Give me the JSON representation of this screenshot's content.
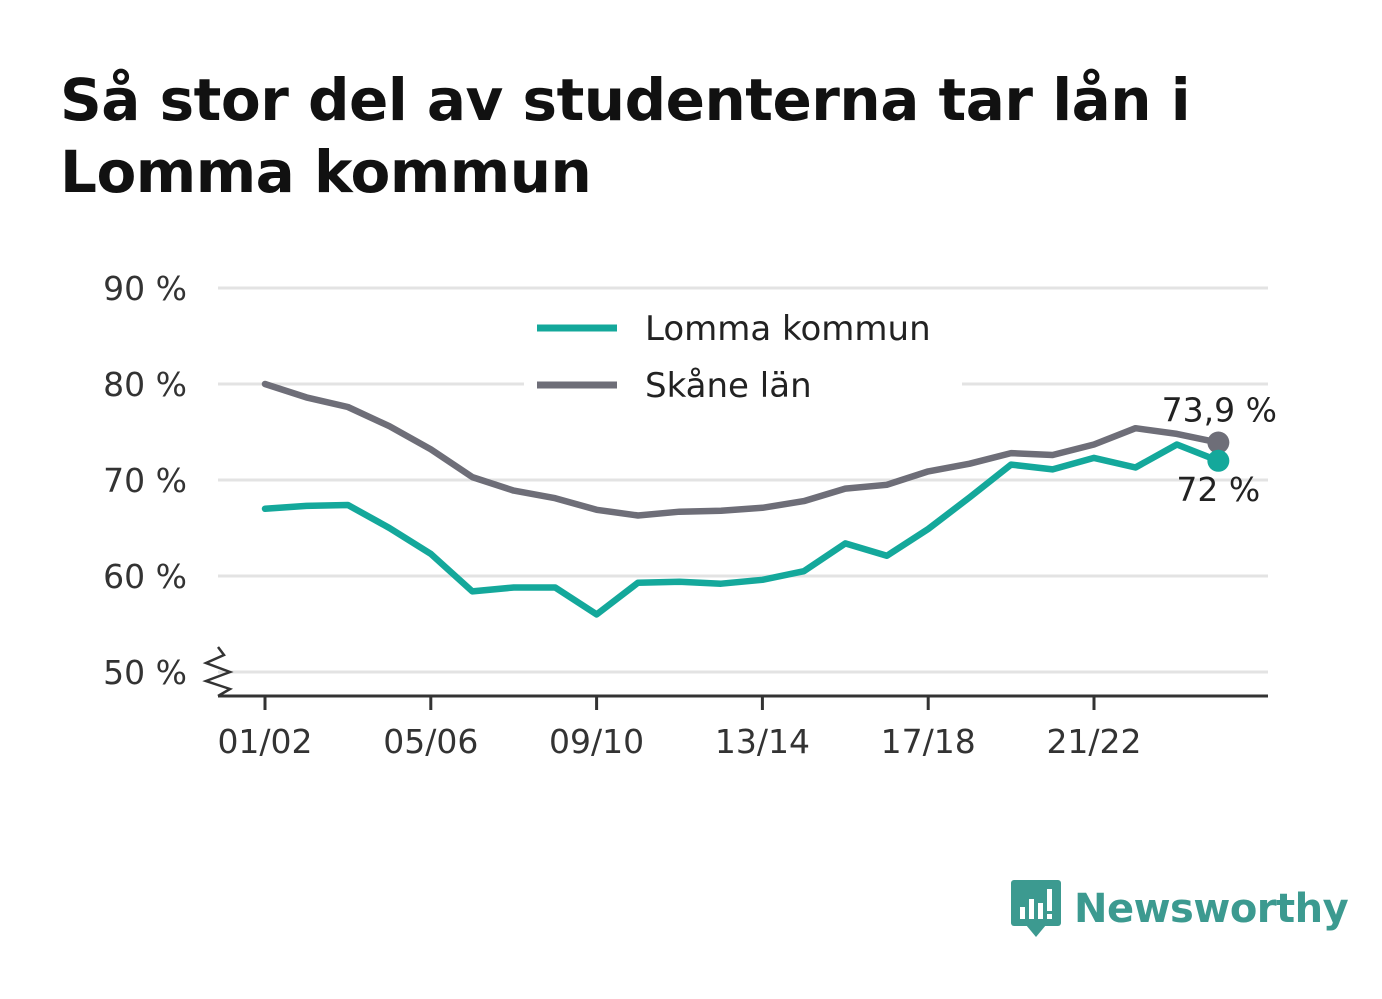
{
  "chart_data": {
    "type": "line",
    "title": "Så stor del av studenterna tar lån i Lomma kommun",
    "xlabel": "",
    "ylabel": "",
    "x": [
      "01/02",
      "02/03",
      "03/04",
      "04/05",
      "05/06",
      "06/07",
      "07/08",
      "08/09",
      "09/10",
      "10/11",
      "11/12",
      "12/13",
      "13/14",
      "14/15",
      "15/16",
      "16/17",
      "17/18",
      "18/19",
      "19/20",
      "20/21",
      "21/22",
      "22/23",
      "23/24",
      "24/25"
    ],
    "x_tick_labels": [
      "01/02",
      "05/06",
      "09/10",
      "13/14",
      "17/18",
      "21/22"
    ],
    "y_tick_labels": [
      "50 %",
      "60 %",
      "70 %",
      "80 %",
      "90 %"
    ],
    "y_ticks": [
      50,
      60,
      70,
      80,
      90
    ],
    "ylim": [
      47.5,
      90
    ],
    "y_axis_break": true,
    "grid": true,
    "legend_position": "top-center",
    "series": [
      {
        "name": "Lomma kommun",
        "color": "#14a89b",
        "values": [
          67.0,
          67.3,
          67.4,
          65.0,
          62.3,
          58.4,
          58.8,
          58.8,
          56.0,
          59.3,
          59.4,
          59.2,
          59.6,
          60.5,
          63.4,
          62.1,
          64.9,
          68.2,
          71.6,
          71.1,
          72.3,
          71.3,
          73.7,
          72.0
        ],
        "end_label": "72 %"
      },
      {
        "name": "Skåne län",
        "color": "#6e6e78",
        "values": [
          80.0,
          78.6,
          77.6,
          75.6,
          73.2,
          70.3,
          68.9,
          68.1,
          66.9,
          66.3,
          66.7,
          66.8,
          67.1,
          67.8,
          69.1,
          69.5,
          70.9,
          71.7,
          72.8,
          72.6,
          73.7,
          75.4,
          74.8,
          73.9
        ],
        "end_label": "73,9 %"
      }
    ]
  },
  "branding": {
    "name": "Newsworthy",
    "icon": "newsworthy-logo-icon",
    "color": "#3c9a90"
  },
  "colors": {
    "grid": "#e3e3e3",
    "axis": "#333333"
  }
}
